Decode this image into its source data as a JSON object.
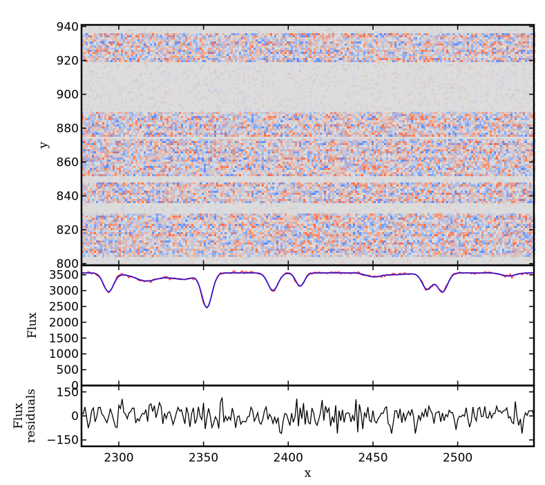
{
  "chart_data": [
    {
      "panel": "residual-image",
      "type": "heatmap",
      "xlabel": "",
      "ylabel": "y",
      "xlim": [
        2278,
        2545
      ],
      "ylim": [
        799,
        941
      ],
      "yticks": [
        800,
        820,
        840,
        860,
        880,
        900,
        920,
        940
      ],
      "yticklabels": [
        "800",
        "820",
        "840",
        "860",
        "880",
        "900",
        "920",
        "940"
      ],
      "xticks": [
        2300,
        2350,
        2400,
        2450,
        2500
      ],
      "show_xticklabels": false,
      "colormap": "coolwarm",
      "background_color": "#dcdcdc",
      "noisy_row_bands": [
        [
          805,
          830
        ],
        [
          836,
          848
        ],
        [
          852,
          874
        ],
        [
          876,
          890
        ],
        [
          920,
          937
        ]
      ],
      "quiet_row_bands": [
        [
          890,
          920
        ],
        [
          937,
          941
        ]
      ]
    },
    {
      "panel": "spectrum",
      "type": "line",
      "xlabel": "",
      "ylabel": "Flux",
      "xlim": [
        2278,
        2545
      ],
      "ylim": [
        0,
        3800
      ],
      "yticks": [
        0,
        500,
        1000,
        1500,
        2000,
        2500,
        3000,
        3500
      ],
      "yticklabels": [
        "0",
        "500",
        "1000",
        "1500",
        "2000",
        "2500",
        "3000",
        "3500"
      ],
      "show_xticklabels": false,
      "continuum": 3560,
      "absorption_lines": [
        {
          "x": 2294,
          "depth": 600,
          "width": 3
        },
        {
          "x": 2352,
          "depth": 1080,
          "width": 3
        },
        {
          "x": 2391,
          "depth": 560,
          "width": 3
        },
        {
          "x": 2407,
          "depth": 420,
          "width": 2.5
        },
        {
          "x": 2340,
          "depth": 150,
          "width": 6
        },
        {
          "x": 2316,
          "depth": 120,
          "width": 5
        },
        {
          "x": 2450,
          "depth": 80,
          "width": 4
        },
        {
          "x": 2482,
          "depth": 520,
          "width": 3
        },
        {
          "x": 2491,
          "depth": 600,
          "width": 3
        },
        {
          "x": 2530,
          "depth": 100,
          "width": 4
        }
      ],
      "shallow_region": {
        "x0": 2297,
        "x1": 2345,
        "depth": 160
      },
      "series": [
        {
          "color": "#ff3030"
        },
        {
          "color": "#3b10c8"
        }
      ]
    },
    {
      "panel": "residuals",
      "type": "line",
      "xlabel": "x",
      "ylabel": "Flux\nresiduals",
      "xlim": [
        2278,
        2545
      ],
      "ylim": [
        -190,
        190
      ],
      "yticks": [
        -150,
        0,
        150
      ],
      "yticklabels": [
        "−150",
        "0",
        "150"
      ],
      "xticks": [
        2300,
        2350,
        2400,
        2450,
        2500
      ],
      "xticklabels": [
        "2300",
        "2350",
        "2400",
        "2450",
        "2500"
      ],
      "residual_scatter": 45,
      "series": [
        {
          "color": "#000000"
        }
      ]
    }
  ]
}
